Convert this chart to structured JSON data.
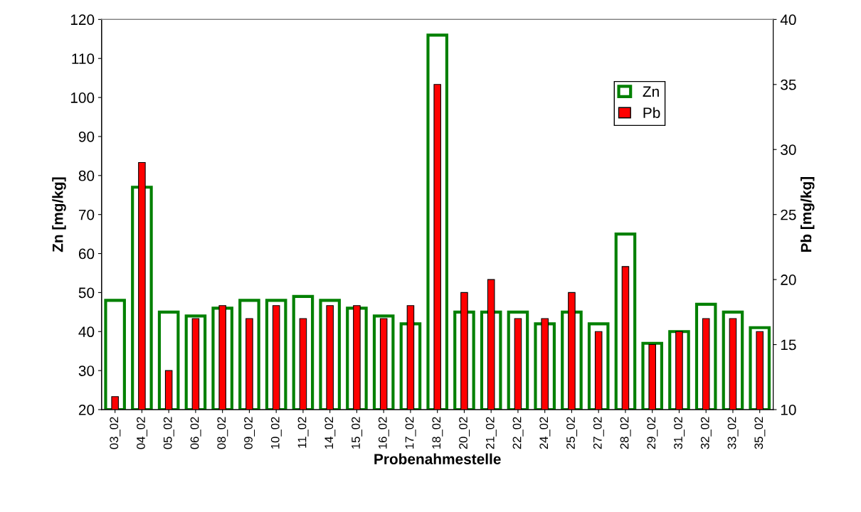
{
  "chart_data": {
    "type": "bar",
    "xlabel": "Probenahmestelle",
    "ylabel": "Zn [mg/kg]",
    "y2label": "Pb [mg/kg]",
    "categories": [
      "03_02",
      "04_02",
      "05_02",
      "06_02",
      "08_02",
      "09_02",
      "10_02",
      "11_02",
      "14_02",
      "15_02",
      "16_02",
      "17_02",
      "18_02",
      "20_02",
      "21_02",
      "22_02",
      "24_02",
      "25_02",
      "27_02",
      "28_02",
      "29_02",
      "31_02",
      "32_02",
      "33_02",
      "35_02"
    ],
    "series": [
      {
        "name": "Zn",
        "color": "#008000",
        "values": [
          48,
          77,
          45,
          44,
          46,
          48,
          48,
          49,
          48,
          46,
          44,
          42,
          116,
          45,
          45,
          45,
          42,
          45,
          42,
          65,
          37,
          40,
          47,
          45,
          41
        ]
      },
      {
        "name": "Pb",
        "color": "#ff0000",
        "axis": "y2",
        "values": [
          11,
          29,
          13,
          17,
          18,
          17,
          18,
          17,
          18,
          18,
          17,
          18,
          35,
          19,
          20,
          17,
          17,
          19,
          16,
          21,
          15,
          16,
          17,
          17,
          16
        ]
      }
    ],
    "ylim": [
      20,
      120
    ],
    "yticks": [
      20,
      30,
      40,
      50,
      60,
      70,
      80,
      90,
      100,
      110,
      120
    ],
    "y2lim": [
      10,
      40
    ],
    "y2ticks": [
      10,
      15,
      20,
      25,
      30,
      35,
      40
    ],
    "grid": false,
    "legend": "top right"
  }
}
